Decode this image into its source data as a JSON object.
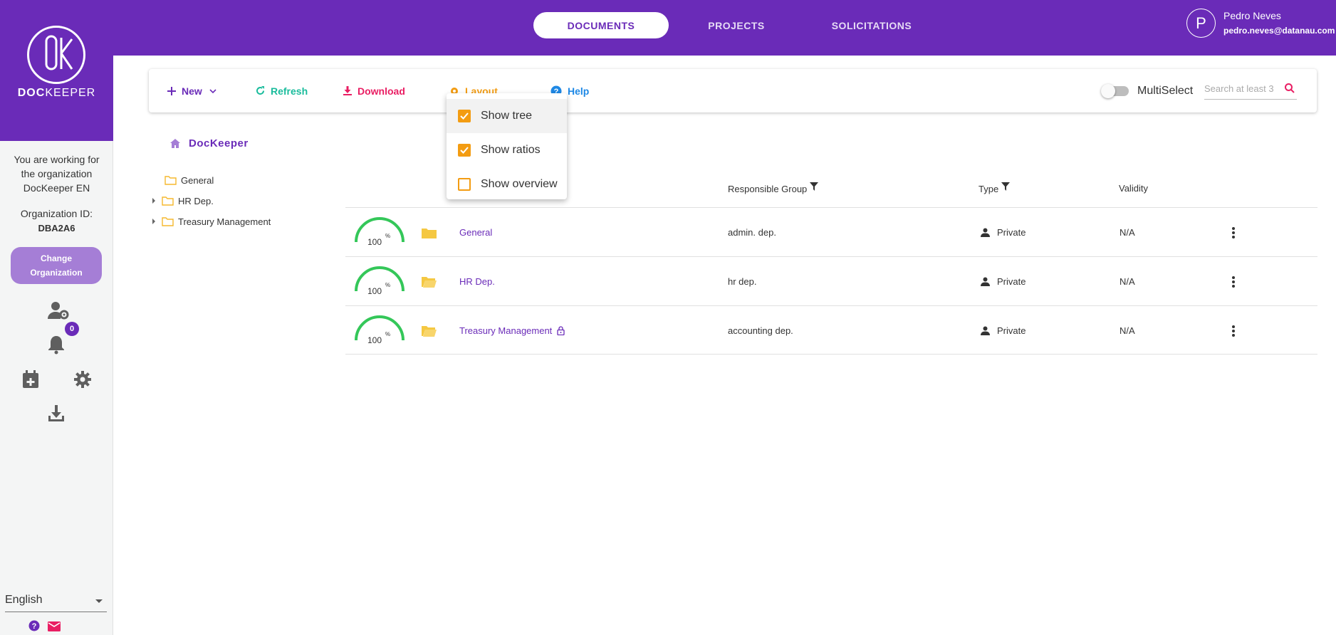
{
  "app": {
    "logo_prefix": "DOC",
    "logo_suffix": "KEEPER"
  },
  "nav": {
    "tabs": [
      {
        "label": "DOCUMENTS",
        "active": true
      },
      {
        "label": "PROJECTS",
        "active": false
      },
      {
        "label": "SOLICITATIONS",
        "active": false
      }
    ]
  },
  "user": {
    "initial": "P",
    "name": "Pedro Neves",
    "email": "pedro.neves@datanau.com"
  },
  "sidebar": {
    "org_line1": "You are working for",
    "org_line2": "the organization",
    "org_line3": "DocKeeper EN",
    "org_id_label": "Organization ID:",
    "org_id": "DBA2A6",
    "change_org_line1": "Change",
    "change_org_line2": "Organization",
    "notification_count": "0",
    "language": "English",
    "icons": [
      "user-settings-icon",
      "bell-icon",
      "calendar-add-icon",
      "gear-icon",
      "download-icon",
      "help-icon",
      "mail-icon"
    ]
  },
  "toolbar": {
    "new_label": "New",
    "refresh_label": "Refresh",
    "download_label": "Download",
    "layout_label": "Layout",
    "help_label": "Help",
    "multiselect_label": "MultiSelect",
    "search_placeholder": "Search at least 3"
  },
  "layout_menu": {
    "items": [
      {
        "label": "Show tree",
        "checked": true
      },
      {
        "label": "Show ratios",
        "checked": true
      },
      {
        "label": "Show overview",
        "checked": false
      }
    ]
  },
  "breadcrumb": {
    "root": "DocKeeper"
  },
  "tree": {
    "items": [
      {
        "label": "General",
        "expandable": false
      },
      {
        "label": "HR Dep.",
        "expandable": true
      },
      {
        "label": "Treasury Management",
        "expandable": true
      }
    ]
  },
  "table": {
    "headers": {
      "responsible_group": "Responsible Group",
      "type": "Type",
      "validity": "Validity"
    },
    "rows": [
      {
        "ratio": "100",
        "pct_sign": "%",
        "name": "General",
        "group": "admin. dep.",
        "type": "Private",
        "validity": "N/A",
        "locked": false
      },
      {
        "ratio": "100",
        "pct_sign": "%",
        "name": "HR Dep.",
        "group": "hr dep.",
        "type": "Private",
        "validity": "N/A",
        "locked": false
      },
      {
        "ratio": "100",
        "pct_sign": "%",
        "name": "Treasury Management",
        "group": "accounting dep.",
        "type": "Private",
        "validity": "N/A",
        "locked": true
      }
    ]
  },
  "colors": {
    "brand": "#6a2bb8",
    "new": "#6a2bb8",
    "refresh": "#1abc9c",
    "download": "#e91e63",
    "layout": "#f39c12",
    "help": "#1e88e5",
    "gauge": "#34c759",
    "folder": "#f5c842"
  }
}
